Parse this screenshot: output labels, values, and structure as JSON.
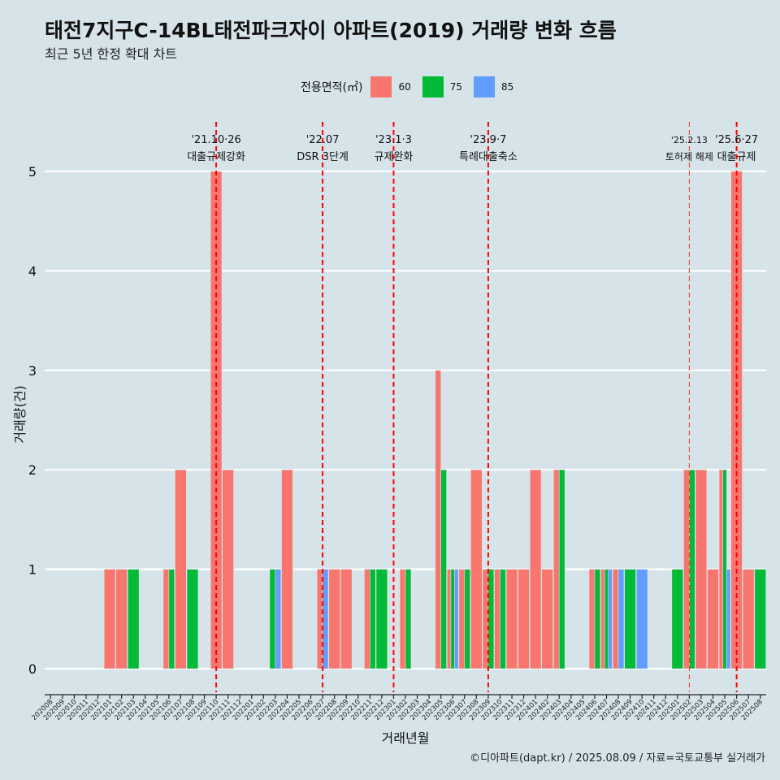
{
  "title": "태전7지구C-14BL태전파크자이 아파트(2019) 거래량 변화 흐름",
  "subtitle": "최근 5년 한정 확대 차트",
  "caption": "©디아파트(dapt.kr) / 2025.08.09 / 자료=국토교통부 실거래가",
  "legend": {
    "title": "전용면적(㎡)",
    "items": [
      {
        "label": "60",
        "color": "#f8766d"
      },
      {
        "label": "75",
        "color": "#00ba38"
      },
      {
        "label": "85",
        "color": "#619cff"
      }
    ]
  },
  "chart_data": {
    "type": "bar",
    "xlabel": "거래년월",
    "ylabel": "거래량(건)",
    "ylim": [
      0,
      5
    ],
    "yticks": [
      0,
      1,
      2,
      3,
      4,
      5
    ],
    "grid": "horizontal",
    "legend_position": "top",
    "categories": [
      "202008",
      "202009",
      "202010",
      "202011",
      "202012",
      "202101",
      "202102",
      "202103",
      "202104",
      "202105",
      "202106",
      "202107",
      "202108",
      "202109",
      "202110",
      "202111",
      "202112",
      "202201",
      "202202",
      "202203",
      "202204",
      "202205",
      "202206",
      "202207",
      "202208",
      "202209",
      "202210",
      "202211",
      "202212",
      "202301",
      "202302",
      "202303",
      "202304",
      "202305",
      "202306",
      "202307",
      "202308",
      "202309",
      "202310",
      "202311",
      "202312",
      "202401",
      "202402",
      "202403",
      "202404",
      "202405",
      "202406",
      "202407",
      "202408",
      "202409",
      "202410",
      "202411",
      "202412",
      "202501",
      "202502",
      "202503",
      "202504",
      "202505",
      "202506",
      "202507",
      "202508"
    ],
    "series": [
      {
        "name": "60",
        "color": "#f8766d",
        "values": [
          0,
          0,
          0,
          0,
          0,
          1,
          1,
          0,
          0,
          0,
          1,
          2,
          0,
          0,
          5,
          2,
          0,
          0,
          0,
          0,
          2,
          0,
          0,
          1,
          1,
          1,
          0,
          1,
          0,
          0,
          1,
          0,
          0,
          3,
          1,
          1,
          2,
          1,
          1,
          1,
          1,
          2,
          1,
          2,
          0,
          0,
          1,
          1,
          1,
          0,
          0,
          0,
          0,
          0,
          2,
          2,
          1,
          2,
          5,
          1,
          0
        ]
      },
      {
        "name": "75",
        "color": "#00ba38",
        "values": [
          0,
          0,
          0,
          0,
          0,
          0,
          0,
          1,
          0,
          0,
          1,
          0,
          1,
          0,
          0,
          0,
          0,
          0,
          0,
          1,
          0,
          0,
          0,
          0,
          0,
          0,
          0,
          1,
          1,
          0,
          1,
          0,
          0,
          2,
          1,
          1,
          0,
          1,
          1,
          0,
          0,
          0,
          0,
          2,
          0,
          0,
          1,
          1,
          0,
          1,
          0,
          0,
          0,
          1,
          2,
          0,
          0,
          2,
          0,
          0,
          1
        ]
      },
      {
        "name": "85",
        "color": "#619cff",
        "values": [
          0,
          0,
          0,
          0,
          0,
          0,
          0,
          0,
          0,
          0,
          0,
          0,
          0,
          0,
          0,
          0,
          0,
          0,
          0,
          1,
          0,
          0,
          0,
          1,
          0,
          0,
          0,
          0,
          0,
          0,
          0,
          0,
          0,
          0,
          1,
          0,
          0,
          0,
          0,
          0,
          0,
          0,
          0,
          0,
          0,
          0,
          0,
          1,
          1,
          0,
          1,
          0,
          0,
          0,
          0,
          0,
          0,
          1,
          0,
          0,
          0
        ]
      }
    ],
    "annotations": [
      {
        "month": "202110",
        "line1": "'21.10·26",
        "line2": "대출규제강화",
        "style": "dashed"
      },
      {
        "month": "202207",
        "line1": "'22.07",
        "line2": "DSR 3단계",
        "style": "dashed"
      },
      {
        "month": "202301",
        "line1": "'23.1·3",
        "line2": "규제완화",
        "style": "dashed"
      },
      {
        "month": "202309",
        "line1": "'23.9·7",
        "line2": "특례대출축소",
        "style": "dashed"
      },
      {
        "month": "202502",
        "line1": "'25.2.13",
        "line2": "토허제 해제",
        "style": "thin"
      },
      {
        "month": "202506",
        "line1": "'25.6·27",
        "line2": "대출규제",
        "style": "dashed"
      }
    ]
  }
}
